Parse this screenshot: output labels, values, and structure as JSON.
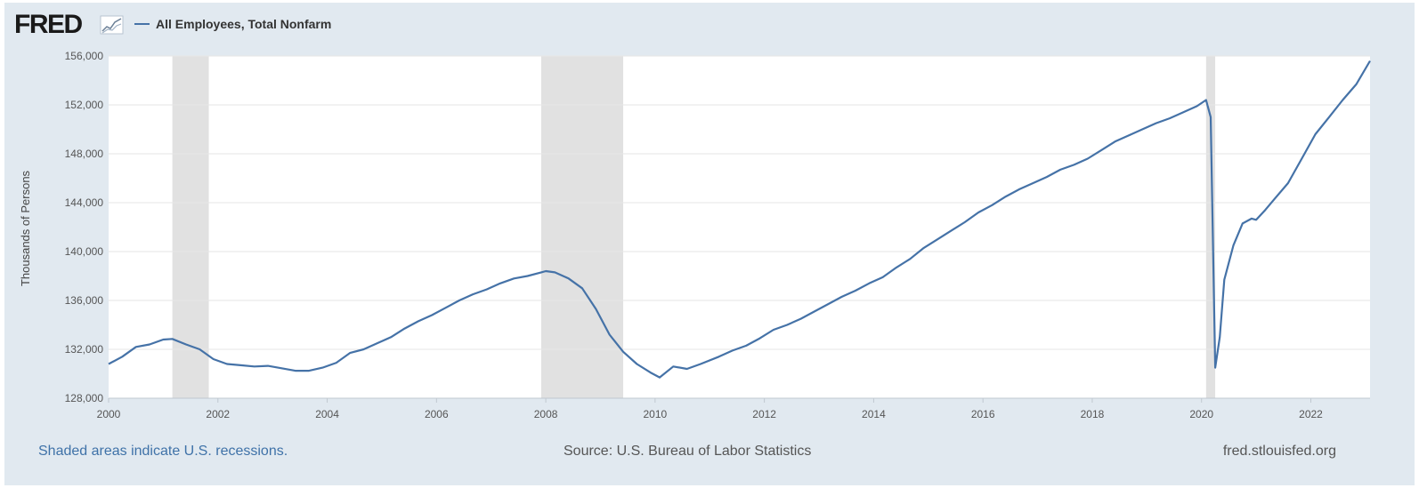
{
  "header": {
    "logo_text": "FRED",
    "legend_label": "All Employees, Total Nonfarm"
  },
  "footer": {
    "recession_note": "Shaded areas indicate U.S. recessions.",
    "source": "Source: U.S. Bureau of Labor Statistics",
    "site": "fred.stlouisfed.org"
  },
  "colors": {
    "background": "#e1e9f0",
    "plot": "#ffffff",
    "series": "#4572a7",
    "recession": "#e1e1e1",
    "grid": "#e6e6e6",
    "link": "#3f72a8"
  },
  "chart_data": {
    "type": "line",
    "title": "",
    "xlabel": "",
    "ylabel": "Thousands of Persons",
    "xlim": [
      "2000-01",
      "2023-02"
    ],
    "ylim": [
      128000,
      156000
    ],
    "grid": true,
    "legend_position": "top-left",
    "x_ticks": [
      "2000",
      "2002",
      "2004",
      "2006",
      "2008",
      "2010",
      "2012",
      "2014",
      "2016",
      "2018",
      "2020",
      "2022"
    ],
    "y_ticks": [
      128000,
      132000,
      136000,
      140000,
      144000,
      148000,
      152000,
      156000
    ],
    "y_tick_labels": [
      "128,000",
      "132,000",
      "136,000",
      "140,000",
      "144,000",
      "148,000",
      "152,000",
      "156,000"
    ],
    "recessions": [
      {
        "start": "2001-03",
        "end": "2001-11"
      },
      {
        "start": "2007-12",
        "end": "2009-06"
      },
      {
        "start": "2020-02",
        "end": "2020-04"
      }
    ],
    "series": [
      {
        "name": "All Employees, Total Nonfarm",
        "points": [
          [
            "2000-01",
            130800
          ],
          [
            "2000-04",
            131400
          ],
          [
            "2000-07",
            132200
          ],
          [
            "2000-10",
            132400
          ],
          [
            "2001-01",
            132800
          ],
          [
            "2001-03",
            132850
          ],
          [
            "2001-06",
            132400
          ],
          [
            "2001-09",
            132000
          ],
          [
            "2001-12",
            131200
          ],
          [
            "2002-03",
            130800
          ],
          [
            "2002-06",
            130700
          ],
          [
            "2002-09",
            130600
          ],
          [
            "2002-12",
            130650
          ],
          [
            "2003-03",
            130450
          ],
          [
            "2003-06",
            130250
          ],
          [
            "2003-09",
            130250
          ],
          [
            "2003-12",
            130500
          ],
          [
            "2004-03",
            130900
          ],
          [
            "2004-06",
            131700
          ],
          [
            "2004-09",
            132000
          ],
          [
            "2004-12",
            132500
          ],
          [
            "2005-03",
            133000
          ],
          [
            "2005-06",
            133700
          ],
          [
            "2005-09",
            134300
          ],
          [
            "2005-12",
            134800
          ],
          [
            "2006-03",
            135400
          ],
          [
            "2006-06",
            136000
          ],
          [
            "2006-09",
            136500
          ],
          [
            "2006-12",
            136900
          ],
          [
            "2007-03",
            137400
          ],
          [
            "2007-06",
            137800
          ],
          [
            "2007-09",
            138000
          ],
          [
            "2007-12",
            138300
          ],
          [
            "2008-01",
            138400
          ],
          [
            "2008-03",
            138300
          ],
          [
            "2008-06",
            137800
          ],
          [
            "2008-09",
            137000
          ],
          [
            "2008-12",
            135300
          ],
          [
            "2009-03",
            133200
          ],
          [
            "2009-06",
            131800
          ],
          [
            "2009-09",
            130800
          ],
          [
            "2009-12",
            130100
          ],
          [
            "2010-02",
            129700
          ],
          [
            "2010-05",
            130600
          ],
          [
            "2010-08",
            130400
          ],
          [
            "2010-11",
            130800
          ],
          [
            "2011-03",
            131400
          ],
          [
            "2011-06",
            131900
          ],
          [
            "2011-09",
            132300
          ],
          [
            "2011-12",
            132900
          ],
          [
            "2012-03",
            133600
          ],
          [
            "2012-06",
            134000
          ],
          [
            "2012-09",
            134500
          ],
          [
            "2012-12",
            135100
          ],
          [
            "2013-03",
            135700
          ],
          [
            "2013-06",
            136300
          ],
          [
            "2013-09",
            136800
          ],
          [
            "2013-12",
            137400
          ],
          [
            "2014-03",
            137900
          ],
          [
            "2014-06",
            138700
          ],
          [
            "2014-09",
            139400
          ],
          [
            "2014-12",
            140300
          ],
          [
            "2015-03",
            141000
          ],
          [
            "2015-06",
            141700
          ],
          [
            "2015-09",
            142400
          ],
          [
            "2015-12",
            143200
          ],
          [
            "2016-03",
            143800
          ],
          [
            "2016-06",
            144500
          ],
          [
            "2016-09",
            145100
          ],
          [
            "2016-12",
            145600
          ],
          [
            "2017-03",
            146100
          ],
          [
            "2017-06",
            146700
          ],
          [
            "2017-09",
            147100
          ],
          [
            "2017-12",
            147600
          ],
          [
            "2018-03",
            148300
          ],
          [
            "2018-06",
            149000
          ],
          [
            "2018-09",
            149500
          ],
          [
            "2018-12",
            150000
          ],
          [
            "2019-03",
            150500
          ],
          [
            "2019-06",
            150900
          ],
          [
            "2019-09",
            151400
          ],
          [
            "2019-12",
            151900
          ],
          [
            "2020-02",
            152400
          ],
          [
            "2020-03",
            151000
          ],
          [
            "2020-04",
            130500
          ],
          [
            "2020-05",
            133000
          ],
          [
            "2020-06",
            137700
          ],
          [
            "2020-08",
            140500
          ],
          [
            "2020-10",
            142300
          ],
          [
            "2020-12",
            142700
          ],
          [
            "2021-01",
            142600
          ],
          [
            "2021-03",
            143400
          ],
          [
            "2021-05",
            144300
          ],
          [
            "2021-08",
            145600
          ],
          [
            "2021-11",
            147600
          ],
          [
            "2022-02",
            149600
          ],
          [
            "2022-05",
            151000
          ],
          [
            "2022-08",
            152400
          ],
          [
            "2022-11",
            153700
          ],
          [
            "2023-02",
            155600
          ]
        ]
      }
    ]
  }
}
